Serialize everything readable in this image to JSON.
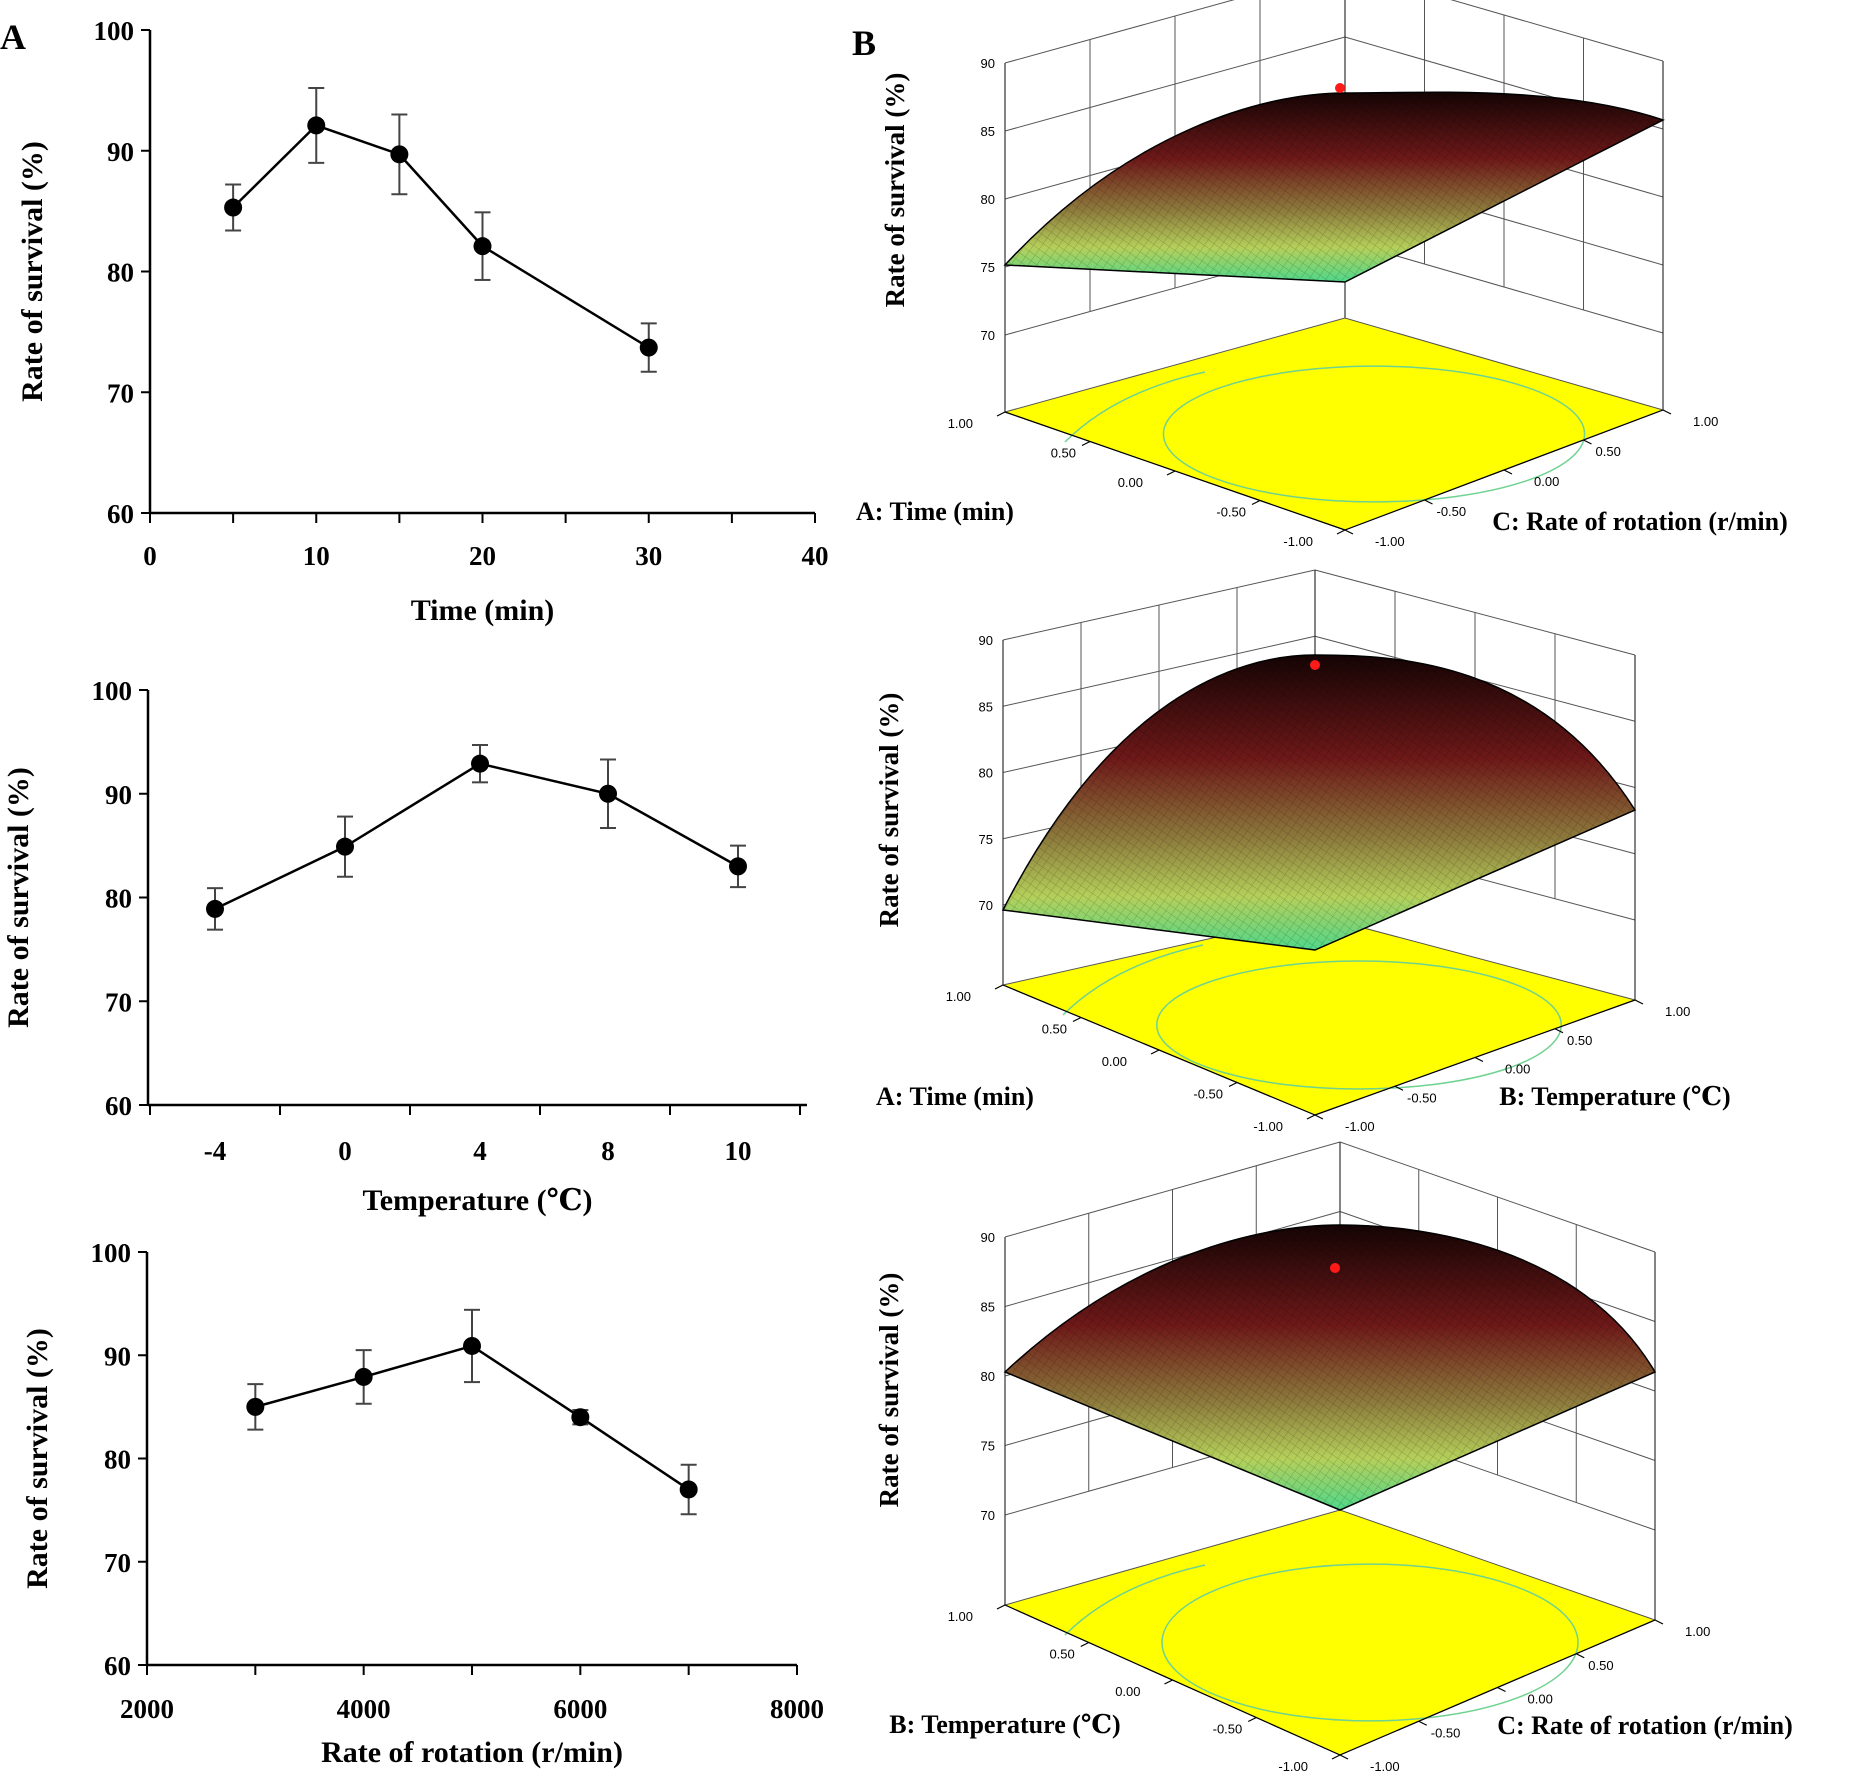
{
  "panels": {
    "a": "A",
    "b": "B"
  },
  "colors": {
    "line": "#000000",
    "base": "#ffff00",
    "surface_top": "#5a0f0f",
    "surface_bottom": "#50e28a",
    "optimum": "#ff1a1a",
    "contour": "#6fd28f"
  },
  "chart_data": [
    {
      "id": "time",
      "type": "line",
      "title": "",
      "xlabel": "Time (min)",
      "ylabel": "Rate of survival (%)",
      "x": [
        5,
        10,
        15,
        20,
        30
      ],
      "values": [
        85.3,
        92.1,
        89.7,
        82.1,
        73.7
      ],
      "errors": [
        1.9,
        3.1,
        3.3,
        2.8,
        2.0
      ],
      "xlim": [
        0,
        40
      ],
      "ylim": [
        60,
        100
      ],
      "xticks": [
        "0",
        "10",
        "20",
        "30",
        "40"
      ],
      "yticks": [
        "60",
        "70",
        "80",
        "90",
        "100"
      ]
    },
    {
      "id": "temperature",
      "type": "line",
      "title": "",
      "xlabel": "Temperature (℃)",
      "ylabel": "Rate of survival (%)",
      "categories": [
        "-4",
        "0",
        "4",
        "8",
        "10"
      ],
      "values": [
        78.9,
        84.9,
        92.9,
        90.0,
        83.0
      ],
      "errors": [
        2.0,
        2.9,
        1.8,
        3.3,
        2.0
      ],
      "ylim": [
        60,
        100
      ],
      "yticks": [
        "60",
        "70",
        "80",
        "90",
        "100"
      ]
    },
    {
      "id": "rotation",
      "type": "line",
      "title": "",
      "xlabel": "Rate of rotation (r/min)",
      "ylabel": "Rate of survival (%)",
      "x": [
        3000,
        4000,
        5000,
        6000,
        7000
      ],
      "values": [
        85.0,
        87.9,
        90.9,
        84.0,
        77.0
      ],
      "errors": [
        2.2,
        2.6,
        3.5,
        0.7,
        2.4
      ],
      "xlim": [
        2000,
        8000
      ],
      "ylim": [
        60,
        100
      ],
      "xticks": [
        "2000",
        "4000",
        "6000",
        "8000"
      ],
      "yticks": [
        "60",
        "70",
        "80",
        "90",
        "100"
      ]
    },
    {
      "id": "surface-ac",
      "type": "surface",
      "zlabel": "Rate of survival (%)",
      "left_axis_label": "A: Time (min)",
      "right_axis_label": "C: Rate of rotation (r/min)",
      "zticks": [
        "70",
        "75",
        "80",
        "85",
        "90"
      ],
      "left_ticks": [
        "1.00",
        "0.50",
        "0.00",
        "-0.50",
        "-1.00"
      ],
      "right_ticks": [
        "1.00",
        "0.50",
        "0.00",
        "-0.50",
        "-1.00"
      ],
      "zlim": [
        70,
        90
      ],
      "surface": {
        "center": 88.2,
        "min_corner": 72.5
      }
    },
    {
      "id": "surface-ab",
      "type": "surface",
      "zlabel": "Rate of survival (%)",
      "left_axis_label": "A: Time (min)",
      "right_axis_label": "B: Temperature (℃)",
      "zticks": [
        "70",
        "75",
        "80",
        "85",
        "90"
      ],
      "left_ticks": [
        "1.00",
        "0.50",
        "0.00",
        "-0.50",
        "-1.00"
      ],
      "right_ticks": [
        "1.00",
        "0.50",
        "0.00",
        "-0.50",
        "-1.00"
      ],
      "zlim": [
        70,
        90
      ],
      "surface": {
        "center": 89.0,
        "min_corner": 68.5
      }
    },
    {
      "id": "surface-bc",
      "type": "surface",
      "zlabel": "Rate of survival (%)",
      "left_axis_label": "B: Temperature (℃)",
      "right_axis_label": "C: Rate of rotation (r/min)",
      "zticks": [
        "70",
        "75",
        "80",
        "85",
        "90"
      ],
      "left_ticks": [
        "1.00",
        "0.50",
        "0.00",
        "-0.50",
        "-1.00"
      ],
      "right_ticks": [
        "1.00",
        "0.50",
        "0.00",
        "-0.50",
        "-1.00"
      ],
      "zlim": [
        70,
        90
      ],
      "surface": {
        "center": 88.4,
        "min_corner": 73.5
      }
    }
  ]
}
